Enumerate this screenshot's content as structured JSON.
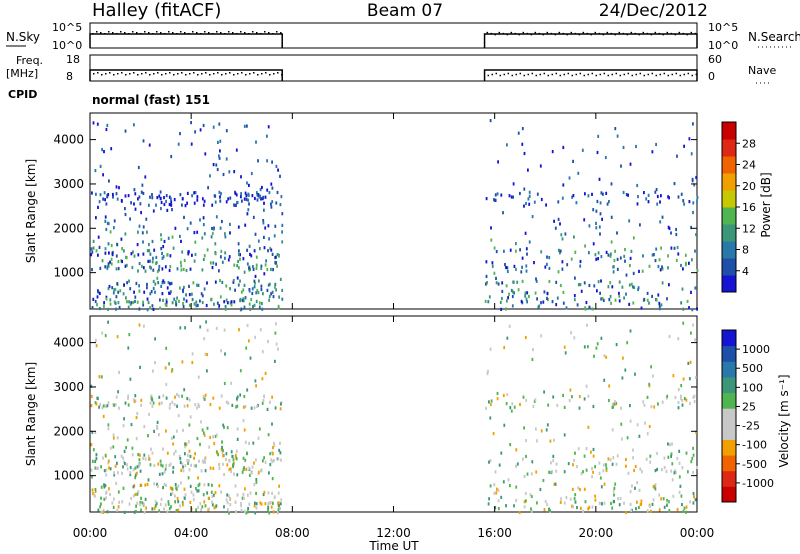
{
  "header": {
    "station": "Halley (fitACF)",
    "beam": "Beam 07",
    "date": "24/Dec/2012"
  },
  "strip_labels": {
    "nsky": "N.Sky",
    "nsearch": "N.Search",
    "freq": "Freq.",
    "freq_unit": "[MHz]",
    "nave": "Nave",
    "cpid": "CPID",
    "cpid_value": "normal (fast) 151"
  },
  "strip_ticks": {
    "nsky_top": "10^5",
    "nsky_bottom": "10^0",
    "nsearch_top": "10^5",
    "nsearch_bottom": "10^0",
    "freq_top": "18",
    "freq_bottom": "8",
    "nave_top": "60",
    "nave_bottom": "0"
  },
  "colors": {
    "power": [
      "#1414d2",
      "#1e50aa",
      "#2878aa",
      "#3c9678",
      "#50b450",
      "#c8c800",
      "#f0a000",
      "#f06400",
      "#dc2814",
      "#c80000"
    ],
    "velocity": [
      "#c80000",
      "#dc2814",
      "#f06400",
      "#f0a000",
      "#c8c8c8",
      "#c8c8c8",
      "#50b450",
      "#3c9678",
      "#2878aa",
      "#1e50aa",
      "#1414d2"
    ],
    "strip_trace": "#000000"
  },
  "chart_data": [
    {
      "type": "heatmap",
      "name": "power-panel",
      "ylabel": "Slant Range [km]",
      "xlabel": "Time UT",
      "x_ticks": [
        "00:00",
        "04:00",
        "08:00",
        "12:00",
        "16:00",
        "20:00",
        "00:00"
      ],
      "x_range_hours": [
        0,
        24
      ],
      "y_ticks": [
        1000,
        2000,
        3000,
        4000
      ],
      "ylim": [
        180,
        4600
      ],
      "colorbar": {
        "label": "Power [dB]",
        "ticks": [
          "4",
          "8",
          "12",
          "16",
          "20",
          "24",
          "28"
        ],
        "range": [
          0,
          30
        ]
      },
      "data_intervals_hours": [
        [
          0,
          7.6
        ],
        [
          15.6,
          24
        ]
      ]
    },
    {
      "type": "heatmap",
      "name": "velocity-panel",
      "ylabel": "Slant Range [km]",
      "xlabel": "Time UT",
      "x_ticks": [
        "00:00",
        "04:00",
        "08:00",
        "12:00",
        "16:00",
        "20:00",
        "00:00"
      ],
      "x_range_hours": [
        0,
        24
      ],
      "y_ticks": [
        1000,
        2000,
        3000,
        4000
      ],
      "ylim": [
        180,
        4600
      ],
      "colorbar": {
        "label": "Velocity [m s⁻¹]",
        "ticks": [
          "1000",
          "500",
          "100",
          "25",
          "-25",
          "-100",
          "-500",
          "-1000"
        ]
      },
      "data_intervals_hours": [
        [
          0,
          7.6
        ],
        [
          15.6,
          24
        ]
      ]
    }
  ]
}
